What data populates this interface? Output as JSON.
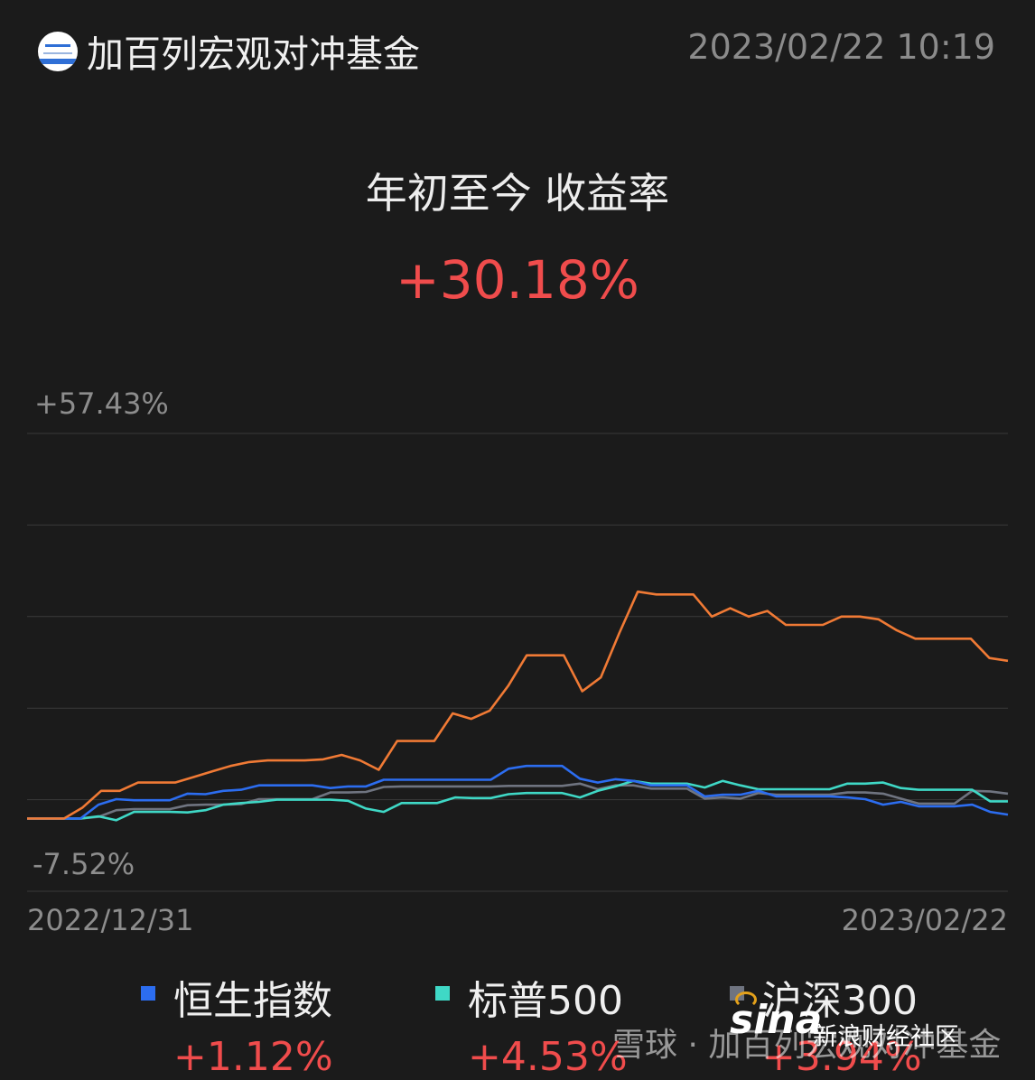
{
  "header": {
    "fund_name": "加百列宏观对冲基金",
    "timestamp": "2023/02/22 10:19"
  },
  "summary": {
    "label": "年初至今 收益率",
    "value": "+30.18%"
  },
  "legend": [
    {
      "name": "恒生指数",
      "value": "+1.12%",
      "color": "#2c6df0"
    },
    {
      "name": "标普500",
      "value": "+4.53%",
      "color": "#3fd8c6"
    },
    {
      "name": "沪深300",
      "value": "+3.94%",
      "color": "#6f7480"
    }
  ],
  "watermark": "雪球 · 加百列宏观对冲基金",
  "sina": {
    "logo": "sina",
    "text": "新浪财经社区"
  },
  "chart_data": {
    "type": "line",
    "ylim": [
      -7.52,
      57.43
    ],
    "y_top_label": "+57.43%",
    "y_bottom_label": "-7.52%",
    "x_start_label": "2022/12/31",
    "x_end_label": "2023/02/22",
    "grid": true,
    "series": [
      {
        "name": "加百列宏观对冲基金",
        "color": "#f07a35",
        "values": [
          -4.0,
          -4.0,
          -4.0,
          -2.0,
          1.0,
          1.0,
          2.5,
          2.5,
          2.5,
          3.5,
          4.5,
          5.5,
          6.2,
          6.5,
          6.5,
          6.5,
          6.7,
          7.5,
          6.5,
          4.8,
          10.0,
          10.0,
          10.0,
          15.0,
          14.0,
          15.5,
          20.0,
          25.5,
          25.5,
          25.5,
          19.0,
          21.5,
          29.5,
          37.0,
          36.5,
          36.5,
          36.5,
          32.5,
          34.0,
          32.5,
          33.5,
          31.0,
          31.0,
          31.0,
          32.5,
          32.5,
          32.0,
          30.0,
          28.5,
          28.5,
          28.5,
          28.5,
          25.0,
          24.5
        ]
      },
      {
        "name": "恒生指数",
        "color": "#2c6df0",
        "values": [
          -4.0,
          -4.0,
          -4.0,
          -4.0,
          -1.5,
          -0.5,
          -0.7,
          -0.7,
          -0.7,
          0.5,
          0.4,
          1.0,
          1.2,
          2.0,
          2.0,
          2.0,
          2.0,
          1.5,
          1.8,
          1.8,
          3.0,
          3.0,
          3.0,
          3.0,
          3.0,
          3.0,
          3.0,
          5.0,
          5.5,
          5.5,
          5.5,
          3.2,
          2.5,
          3.1,
          2.8,
          2.0,
          2.0,
          2.0,
          0.0,
          0.3,
          0.3,
          1.0,
          0.0,
          0.0,
          0.0,
          0.0,
          -0.2,
          -0.5,
          -1.5,
          -1.0,
          -1.8,
          -1.8,
          -1.8,
          -1.5,
          -2.8,
          -3.3
        ]
      },
      {
        "name": "标普500",
        "color": "#3fd8c6",
        "values": [
          -4.0,
          -4.0,
          -4.0,
          -4.0,
          -3.6,
          -4.3,
          -2.8,
          -2.8,
          -2.8,
          -2.9,
          -2.5,
          -1.5,
          -1.2,
          -1.0,
          -0.6,
          -0.6,
          -0.6,
          -0.6,
          -0.8,
          -2.2,
          -2.8,
          -1.2,
          -1.2,
          -1.2,
          -0.2,
          -0.3,
          -0.3,
          0.4,
          0.6,
          0.6,
          0.6,
          -0.2,
          1.0,
          1.8,
          2.8,
          2.3,
          2.3,
          2.3,
          1.6,
          2.8,
          2.0,
          1.3,
          1.3,
          1.3,
          1.3,
          1.3,
          2.3,
          2.3,
          2.5,
          1.5,
          1.2,
          1.2,
          1.2,
          1.2,
          -0.9,
          -0.9
        ]
      },
      {
        "name": "沪深300",
        "color": "#6f7480",
        "values": [
          -4.0,
          -4.0,
          -4.0,
          -4.0,
          -3.7,
          -2.5,
          -2.3,
          -2.3,
          -2.3,
          -1.6,
          -1.5,
          -1.5,
          -1.4,
          -0.5,
          -0.5,
          -0.5,
          -0.5,
          0.7,
          0.7,
          0.8,
          1.7,
          1.8,
          1.8,
          1.8,
          1.8,
          1.8,
          1.8,
          1.9,
          1.9,
          1.9,
          1.9,
          2.3,
          1.3,
          2.0,
          2.0,
          1.4,
          1.4,
          1.4,
          -0.4,
          -0.2,
          -0.4,
          0.6,
          0.3,
          0.3,
          0.3,
          0.3,
          0.7,
          0.7,
          0.5,
          -0.4,
          -1.3,
          -1.3,
          -1.3,
          1.0,
          0.9,
          0.5
        ]
      }
    ]
  }
}
